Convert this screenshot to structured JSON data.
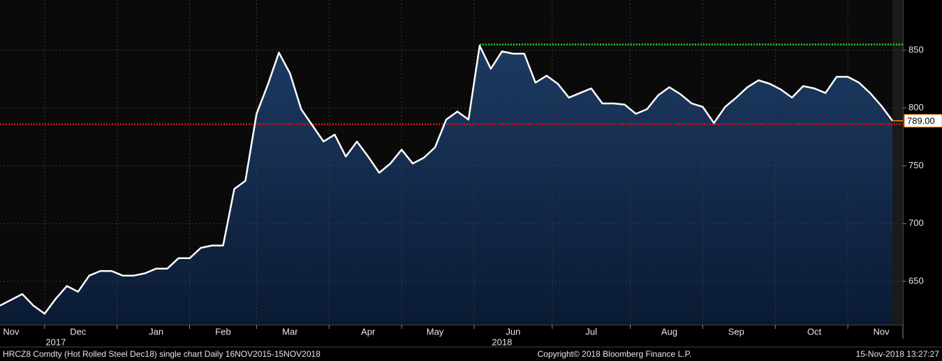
{
  "chart_data": {
    "type": "line",
    "categories": [
      null,
      "Nov",
      null,
      null,
      null,
      null,
      null,
      "Dec",
      null,
      null,
      null,
      null,
      null,
      null,
      "Jan",
      null,
      null,
      null,
      null,
      null,
      "Feb",
      null,
      null,
      null,
      null,
      null,
      "Mar",
      null,
      null,
      null,
      null,
      null,
      null,
      "Apr",
      null,
      null,
      null,
      null,
      null,
      "May",
      null,
      null,
      null,
      null,
      null,
      null,
      "Jun",
      null,
      null,
      null,
      null,
      null,
      null,
      "Jul",
      null,
      null,
      null,
      null,
      null,
      null,
      "Aug",
      null,
      null,
      null,
      null,
      null,
      "Sep",
      null,
      null,
      null,
      null,
      null,
      null,
      "Oct",
      null,
      null,
      null,
      null,
      null,
      "Nov",
      null
    ],
    "series": [
      {
        "color": "#ffffff",
        "values": [
          629,
          634,
          639,
          629,
          622,
          635,
          646,
          641,
          655,
          659,
          659,
          655,
          655,
          657,
          661,
          661,
          670,
          670,
          679,
          681,
          681,
          730,
          737,
          795,
          820,
          848,
          830,
          799,
          785,
          771,
          777,
          758,
          771,
          758,
          744,
          752,
          764,
          752,
          757,
          766,
          790,
          797,
          790,
          854,
          834,
          849,
          847,
          847,
          822,
          828,
          821,
          809,
          813,
          817,
          804,
          804,
          803,
          795,
          799,
          811,
          818,
          812,
          804,
          801,
          787,
          801,
          809,
          818,
          824,
          821,
          816,
          809,
          819,
          817,
          813,
          827,
          827,
          822,
          813,
          802,
          789
        ],
        "value_labels": [
          null,
          null,
          null,
          null,
          null,
          null,
          null,
          null,
          null,
          null,
          null,
          null,
          null,
          null,
          null,
          null,
          null,
          null,
          null,
          null,
          null,
          null,
          null,
          null,
          null,
          null,
          null,
          null,
          null,
          null,
          null,
          null,
          null,
          null,
          null,
          null,
          null,
          null,
          null,
          null,
          null,
          null,
          null,
          null,
          null,
          null,
          null,
          null,
          null,
          null,
          null,
          null,
          null,
          null,
          null,
          null,
          null,
          null,
          null,
          null,
          null,
          null,
          null,
          null,
          null,
          null,
          null,
          null,
          null,
          null,
          null,
          null,
          null,
          null,
          null,
          null,
          null,
          null,
          null,
          null,
          "789.00"
        ]
      }
    ],
    "reference_lines": [
      {
        "value": 786,
        "color": "#e01010"
      },
      {
        "value": 855,
        "color": "#22dd22"
      }
    ],
    "annotations": [
      {
        "text": "2017",
        "category": 5
      },
      {
        "text": "2018",
        "category": 45
      }
    ],
    "ylim": [
      612.5,
      893.5
    ],
    "yticks": [
      650,
      700,
      750,
      800,
      850
    ],
    "grid": true
  },
  "footer": {
    "left": "HRCZ8 Comdty (Hot Rolled Steel  Dec18) single chart  Daily 16NOV2015-15NOV2018",
    "center": "Copyright© 2018 Bloomberg Finance L.P.",
    "right": "15-Nov-2018 13:27:27"
  }
}
